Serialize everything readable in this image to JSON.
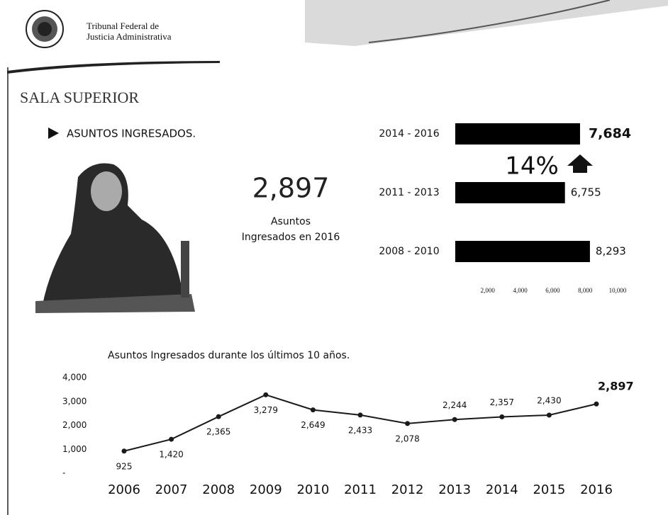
{
  "header": {
    "line1": "Tribunal Federal de",
    "line2": "Justicia Administrativa"
  },
  "section_title": "SALA SUPERIOR",
  "subtitle": "ASUNTOS INGRESADOS.",
  "highlight": {
    "value": "2,897",
    "caption1": "Asuntos",
    "caption2": "Ingresados en 2016"
  },
  "chart_data": [
    {
      "type": "hbar",
      "categories": [
        "2014 - 2016",
        "2011 - 2013",
        "2008 - 2010"
      ],
      "values": [
        7684,
        6755,
        8293
      ],
      "value_labels": [
        "7,684",
        "6,755",
        "8,293"
      ],
      "color": "#000000",
      "annotation": "14%",
      "xlim": [
        0,
        10000
      ],
      "xticks": [
        {
          "value": 2000,
          "label": "2,000"
        },
        {
          "value": 4000,
          "label": "4,000"
        },
        {
          "value": 6000,
          "label": "6,000"
        },
        {
          "value": 8000,
          "label": "8,000"
        },
        {
          "value": 10000,
          "label": "10,000"
        }
      ]
    },
    {
      "type": "line",
      "title": "Asuntos Ingresados durante los últimos 10 años.",
      "categories": [
        "2006",
        "2007",
        "2008",
        "2009",
        "2010",
        "2011",
        "2012",
        "2013",
        "2014",
        "2015",
        "2016"
      ],
      "values": [
        925,
        1420,
        2365,
        3279,
        2649,
        2433,
        2078,
        2244,
        2357,
        2430,
        2897
      ],
      "value_labels": [
        "925",
        "1,420",
        "2,365",
        "3,279",
        "2,649",
        "2,433",
        "2,078",
        "2,244",
        "2,357",
        "2,430",
        "2,897"
      ],
      "color": "#1a1a1a",
      "ylim": [
        0,
        4000
      ],
      "yticks": [
        {
          "value": 0,
          "label": "-"
        },
        {
          "value": 1000,
          "label": "1,000"
        },
        {
          "value": 2000,
          "label": "2,000"
        },
        {
          "value": 3000,
          "label": "3,000"
        },
        {
          "value": 4000,
          "label": "4,000"
        }
      ]
    }
  ]
}
